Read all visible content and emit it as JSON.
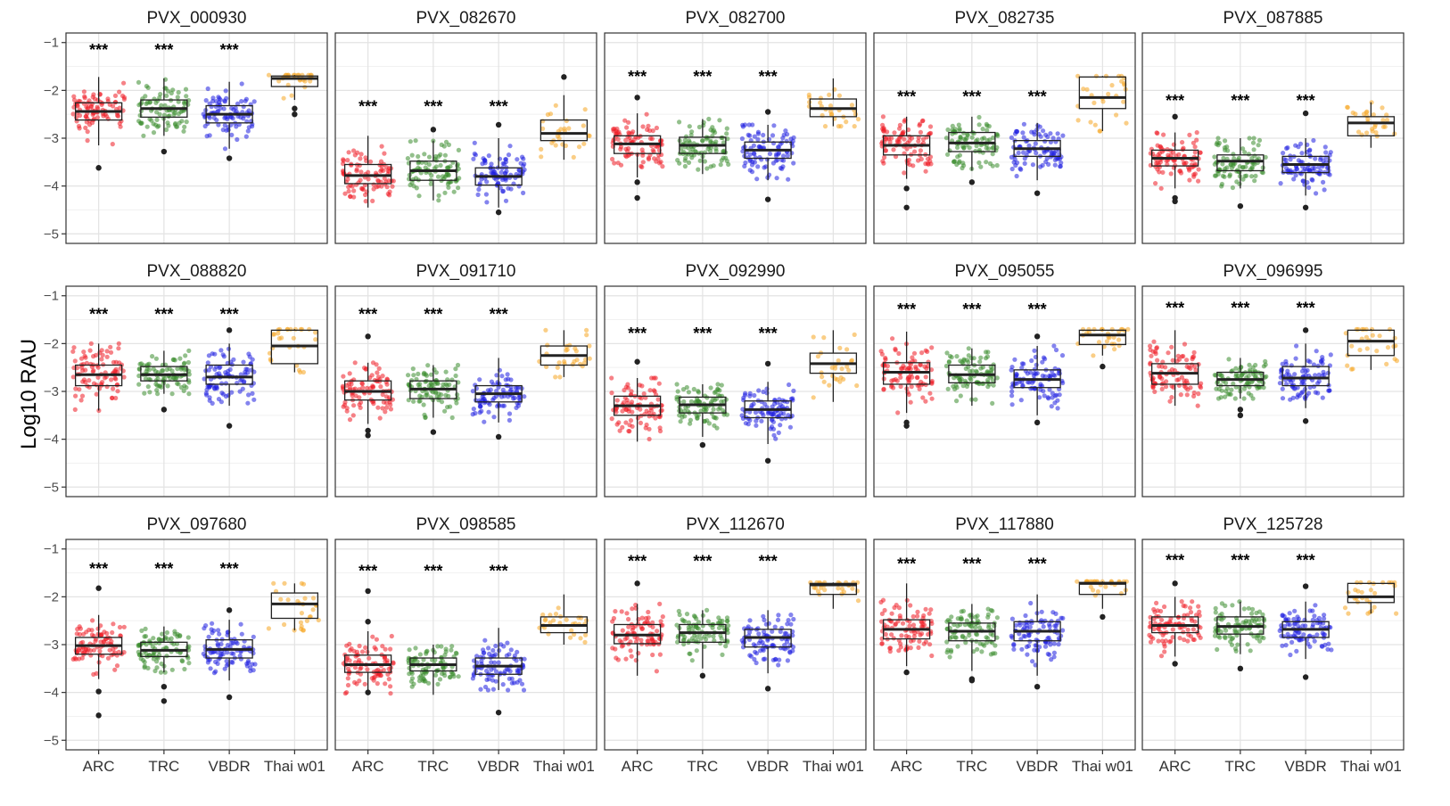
{
  "chart_data": {
    "type": "boxplot",
    "layout": "faceted grid, 3 rows x 5 columns",
    "ylabel": "Log10  RAU",
    "xlabel": "",
    "categories": [
      "ARC",
      "TRC",
      "VBDR",
      "Thai w01"
    ],
    "yticks": [
      -1,
      -2,
      -3,
      -4,
      -5
    ],
    "ylim": [
      -5.2,
      -0.8
    ],
    "grid": true,
    "colors": {
      "ARC": "#ee1c25",
      "TRC": "#3a8c2e",
      "VBDR": "#1f1fe0",
      "Thai w01": "#f5a623"
    },
    "significance_label": "***",
    "panels": [
      {
        "title": "PVX_000930",
        "boxes": [
          {
            "category": "ARC",
            "q1": -2.62,
            "median": -2.44,
            "q3": -2.26,
            "whisker_low": -3.15,
            "whisker_high": -1.72,
            "outliers": [
              -3.62
            ]
          },
          {
            "category": "TRC",
            "q1": -2.56,
            "median": -2.38,
            "q3": -2.2,
            "whisker_low": -2.95,
            "whisker_high": -1.75,
            "outliers": [
              -3.28
            ]
          },
          {
            "category": "VBDR",
            "q1": -2.68,
            "median": -2.5,
            "q3": -2.32,
            "whisker_low": -3.22,
            "whisker_high": -1.82,
            "outliers": [
              -3.42
            ]
          },
          {
            "category": "Thai w01",
            "q1": -1.92,
            "median": -1.75,
            "q3": -1.7,
            "whisker_low": -2.2,
            "whisker_high": -1.68,
            "outliers": [
              -2.38,
              -2.5
            ]
          }
        ],
        "significance": [
          "***",
          "***",
          "***",
          ""
        ],
        "sig_y": -1.12
      },
      {
        "title": "PVX_082670",
        "boxes": [
          {
            "category": "ARC",
            "q1": -3.95,
            "median": -3.78,
            "q3": -3.55,
            "whisker_low": -4.45,
            "whisker_high": -2.95,
            "outliers": []
          },
          {
            "category": "TRC",
            "q1": -3.88,
            "median": -3.68,
            "q3": -3.48,
            "whisker_low": -4.3,
            "whisker_high": -3.05,
            "outliers": [
              -2.82
            ]
          },
          {
            "category": "VBDR",
            "q1": -3.98,
            "median": -3.8,
            "q3": -3.62,
            "whisker_low": -4.45,
            "whisker_high": -3.0,
            "outliers": [
              -2.72,
              -4.55
            ]
          },
          {
            "category": "Thai w01",
            "q1": -3.05,
            "median": -2.9,
            "q3": -2.62,
            "whisker_low": -3.45,
            "whisker_high": -2.1,
            "outliers": [
              -1.72
            ]
          }
        ],
        "significance": [
          "***",
          "***",
          "***",
          ""
        ],
        "sig_y": -2.3
      },
      {
        "title": "PVX_082700",
        "boxes": [
          {
            "category": "ARC",
            "q1": -3.32,
            "median": -3.12,
            "q3": -2.95,
            "whisker_low": -3.82,
            "whisker_high": -2.48,
            "outliers": [
              -2.15,
              -3.92,
              -4.25
            ]
          },
          {
            "category": "TRC",
            "q1": -3.32,
            "median": -3.15,
            "q3": -2.98,
            "whisker_low": -3.75,
            "whisker_high": -2.6,
            "outliers": []
          },
          {
            "category": "VBDR",
            "q1": -3.42,
            "median": -3.25,
            "q3": -3.08,
            "whisker_low": -3.88,
            "whisker_high": -2.72,
            "outliers": [
              -2.45,
              -4.28
            ]
          },
          {
            "category": "Thai w01",
            "q1": -2.55,
            "median": -2.38,
            "q3": -2.18,
            "whisker_low": -2.75,
            "whisker_high": -1.75,
            "outliers": []
          }
        ],
        "significance": [
          "***",
          "***",
          "***",
          ""
        ],
        "sig_y": -1.68
      },
      {
        "title": "PVX_082735",
        "boxes": [
          {
            "category": "ARC",
            "q1": -3.35,
            "median": -3.15,
            "q3": -2.95,
            "whisker_low": -3.85,
            "whisker_high": -2.55,
            "outliers": [
              -4.05,
              -4.45
            ]
          },
          {
            "category": "TRC",
            "q1": -3.28,
            "median": -3.1,
            "q3": -2.88,
            "whisker_low": -3.68,
            "whisker_high": -2.55,
            "outliers": [
              -3.92
            ]
          },
          {
            "category": "VBDR",
            "q1": -3.38,
            "median": -3.22,
            "q3": -3.05,
            "whisker_low": -3.88,
            "whisker_high": -2.68,
            "outliers": [
              -4.15
            ]
          },
          {
            "category": "Thai w01",
            "q1": -2.38,
            "median": -2.15,
            "q3": -1.72,
            "whisker_low": -2.85,
            "whisker_high": -1.7,
            "outliers": []
          }
        ],
        "significance": [
          "***",
          "***",
          "***",
          ""
        ],
        "sig_y": -2.1
      },
      {
        "title": "PVX_087885",
        "boxes": [
          {
            "category": "ARC",
            "q1": -3.58,
            "median": -3.42,
            "q3": -3.25,
            "whisker_low": -4.05,
            "whisker_high": -2.88,
            "outliers": [
              -2.55,
              -4.25,
              -4.32
            ]
          },
          {
            "category": "TRC",
            "q1": -3.68,
            "median": -3.48,
            "q3": -3.35,
            "whisker_low": -4.05,
            "whisker_high": -3.0,
            "outliers": [
              -4.42
            ]
          },
          {
            "category": "VBDR",
            "q1": -3.72,
            "median": -3.55,
            "q3": -3.38,
            "whisker_low": -4.2,
            "whisker_high": -3.0,
            "outliers": [
              -2.48,
              -4.45
            ]
          },
          {
            "category": "Thai w01",
            "q1": -2.95,
            "median": -2.68,
            "q3": -2.55,
            "whisker_low": -3.2,
            "whisker_high": -2.25,
            "outliers": []
          }
        ],
        "significance": [
          "***",
          "***",
          "***",
          ""
        ],
        "sig_y": -2.18
      },
      {
        "title": "PVX_088820",
        "boxes": [
          {
            "category": "ARC",
            "q1": -2.88,
            "median": -2.65,
            "q3": -2.45,
            "whisker_low": -3.4,
            "whisker_high": -2.0,
            "outliers": []
          },
          {
            "category": "TRC",
            "q1": -2.78,
            "median": -2.65,
            "q3": -2.48,
            "whisker_low": -3.05,
            "whisker_high": -2.15,
            "outliers": [
              -3.38
            ]
          },
          {
            "category": "VBDR",
            "q1": -2.85,
            "median": -2.7,
            "q3": -2.45,
            "whisker_low": -3.3,
            "whisker_high": -2.0,
            "outliers": [
              -1.72,
              -3.72
            ]
          },
          {
            "category": "Thai w01",
            "q1": -2.42,
            "median": -2.05,
            "q3": -1.72,
            "whisker_low": -2.6,
            "whisker_high": -1.7,
            "outliers": []
          }
        ],
        "significance": [
          "***",
          "***",
          "***",
          ""
        ],
        "sig_y": -1.35
      },
      {
        "title": "PVX_091710",
        "boxes": [
          {
            "category": "ARC",
            "q1": -3.18,
            "median": -3.0,
            "q3": -2.78,
            "whisker_low": -3.68,
            "whisker_high": -2.4,
            "outliers": [
              -1.85,
              -3.82,
              -3.92
            ]
          },
          {
            "category": "TRC",
            "q1": -3.15,
            "median": -2.95,
            "q3": -2.78,
            "whisker_low": -3.55,
            "whisker_high": -2.45,
            "outliers": [
              -3.85
            ]
          },
          {
            "category": "VBDR",
            "q1": -3.22,
            "median": -3.05,
            "q3": -2.88,
            "whisker_low": -3.65,
            "whisker_high": -2.3,
            "outliers": [
              -3.95
            ]
          },
          {
            "category": "Thai w01",
            "q1": -2.45,
            "median": -2.25,
            "q3": -2.05,
            "whisker_low": -2.7,
            "whisker_high": -1.72,
            "outliers": []
          }
        ],
        "significance": [
          "***",
          "***",
          "***",
          ""
        ],
        "sig_y": -1.35
      },
      {
        "title": "PVX_092990",
        "boxes": [
          {
            "category": "ARC",
            "q1": -3.5,
            "median": -3.3,
            "q3": -3.1,
            "whisker_low": -4.05,
            "whisker_high": -2.72,
            "outliers": [
              -2.38
            ]
          },
          {
            "category": "TRC",
            "q1": -3.45,
            "median": -3.28,
            "q3": -3.12,
            "whisker_low": -3.95,
            "whisker_high": -2.85,
            "outliers": [
              -4.12
            ]
          },
          {
            "category": "VBDR",
            "q1": -3.55,
            "median": -3.38,
            "q3": -3.2,
            "whisker_low": -4.1,
            "whisker_high": -2.8,
            "outliers": [
              -2.42,
              -4.45
            ]
          },
          {
            "category": "Thai w01",
            "q1": -2.62,
            "median": -2.42,
            "q3": -2.2,
            "whisker_low": -3.22,
            "whisker_high": -1.72,
            "outliers": []
          }
        ],
        "significance": [
          "***",
          "***",
          "***",
          ""
        ],
        "sig_y": -1.75
      },
      {
        "title": "PVX_095055",
        "boxes": [
          {
            "category": "ARC",
            "q1": -2.85,
            "median": -2.6,
            "q3": -2.4,
            "whisker_low": -3.45,
            "whisker_high": -1.75,
            "outliers": [
              -3.65,
              -3.72
            ]
          },
          {
            "category": "TRC",
            "q1": -2.82,
            "median": -2.65,
            "q3": -2.45,
            "whisker_low": -3.3,
            "whisker_high": -2.1,
            "outliers": []
          },
          {
            "category": "VBDR",
            "q1": -2.92,
            "median": -2.75,
            "q3": -2.55,
            "whisker_low": -3.5,
            "whisker_high": -2.05,
            "outliers": [
              -1.85,
              -3.65
            ]
          },
          {
            "category": "Thai w01",
            "q1": -2.02,
            "median": -1.82,
            "q3": -1.72,
            "whisker_low": -2.25,
            "whisker_high": -1.7,
            "outliers": [
              -2.48
            ]
          }
        ],
        "significance": [
          "***",
          "***",
          "***",
          ""
        ],
        "sig_y": -1.25
      },
      {
        "title": "PVX_096995",
        "boxes": [
          {
            "category": "ARC",
            "q1": -2.85,
            "median": -2.62,
            "q3": -2.42,
            "whisker_low": -3.3,
            "whisker_high": -1.72,
            "outliers": []
          },
          {
            "category": "TRC",
            "q1": -2.88,
            "median": -2.75,
            "q3": -2.6,
            "whisker_low": -3.15,
            "whisker_high": -2.3,
            "outliers": [
              -3.38,
              -3.5
            ]
          },
          {
            "category": "VBDR",
            "q1": -2.88,
            "median": -2.72,
            "q3": -2.48,
            "whisker_low": -3.35,
            "whisker_high": -2.0,
            "outliers": [
              -1.72,
              -3.62
            ]
          },
          {
            "category": "Thai w01",
            "q1": -2.25,
            "median": -1.95,
            "q3": -1.72,
            "whisker_low": -2.55,
            "whisker_high": -1.7,
            "outliers": []
          }
        ],
        "significance": [
          "***",
          "***",
          "***",
          ""
        ],
        "sig_y": -1.22
      },
      {
        "title": "PVX_097680",
        "boxes": [
          {
            "category": "ARC",
            "q1": -3.2,
            "median": -3.02,
            "q3": -2.85,
            "whisker_low": -3.72,
            "whisker_high": -2.38,
            "outliers": [
              -1.82,
              -3.98,
              -4.48
            ]
          },
          {
            "category": "TRC",
            "q1": -3.25,
            "median": -3.12,
            "q3": -2.95,
            "whisker_low": -3.58,
            "whisker_high": -2.62,
            "outliers": [
              -3.88,
              -4.18
            ]
          },
          {
            "category": "VBDR",
            "q1": -3.28,
            "median": -3.1,
            "q3": -2.9,
            "whisker_low": -3.75,
            "whisker_high": -2.48,
            "outliers": [
              -2.28,
              -4.1
            ]
          },
          {
            "category": "Thai w01",
            "q1": -2.45,
            "median": -2.15,
            "q3": -1.92,
            "whisker_low": -2.7,
            "whisker_high": -1.72,
            "outliers": []
          }
        ],
        "significance": [
          "***",
          "***",
          "***",
          ""
        ],
        "sig_y": -1.38
      },
      {
        "title": "PVX_098585",
        "boxes": [
          {
            "category": "ARC",
            "q1": -3.58,
            "median": -3.42,
            "q3": -3.22,
            "whisker_low": -4.02,
            "whisker_high": -2.72,
            "outliers": [
              -1.88,
              -2.52,
              -4.0
            ]
          },
          {
            "category": "TRC",
            "q1": -3.55,
            "median": -3.42,
            "q3": -3.28,
            "whisker_low": -4.05,
            "whisker_high": -3.0,
            "outliers": []
          },
          {
            "category": "VBDR",
            "q1": -3.62,
            "median": -3.45,
            "q3": -3.28,
            "whisker_low": -3.95,
            "whisker_high": -2.65,
            "outliers": [
              -4.42
            ]
          },
          {
            "category": "Thai w01",
            "q1": -2.75,
            "median": -2.6,
            "q3": -2.42,
            "whisker_low": -3.0,
            "whisker_high": -1.95,
            "outliers": []
          }
        ],
        "significance": [
          "***",
          "***",
          "***",
          ""
        ],
        "sig_y": -1.42
      },
      {
        "title": "PVX_112670",
        "boxes": [
          {
            "category": "ARC",
            "q1": -2.98,
            "median": -2.8,
            "q3": -2.58,
            "whisker_low": -3.65,
            "whisker_high": -2.15,
            "outliers": [
              -1.72
            ]
          },
          {
            "category": "TRC",
            "q1": -2.95,
            "median": -2.75,
            "q3": -2.58,
            "whisker_low": -3.5,
            "whisker_high": -2.28,
            "outliers": [
              -3.65
            ]
          },
          {
            "category": "VBDR",
            "q1": -3.05,
            "median": -2.85,
            "q3": -2.68,
            "whisker_low": -3.6,
            "whisker_high": -2.28,
            "outliers": [
              -3.92
            ]
          },
          {
            "category": "Thai w01",
            "q1": -1.95,
            "median": -1.75,
            "q3": -1.72,
            "whisker_low": -2.25,
            "whisker_high": -1.7,
            "outliers": []
          }
        ],
        "significance": [
          "***",
          "***",
          "***",
          ""
        ],
        "sig_y": -1.22
      },
      {
        "title": "PVX_117880",
        "boxes": [
          {
            "category": "ARC",
            "q1": -2.88,
            "median": -2.68,
            "q3": -2.48,
            "whisker_low": -3.45,
            "whisker_high": -1.72,
            "outliers": [
              -3.58
            ]
          },
          {
            "category": "TRC",
            "q1": -2.92,
            "median": -2.72,
            "q3": -2.55,
            "whisker_low": -3.55,
            "whisker_high": -2.15,
            "outliers": [
              -3.72,
              -3.75
            ]
          },
          {
            "category": "VBDR",
            "q1": -2.92,
            "median": -2.72,
            "q3": -2.52,
            "whisker_low": -3.65,
            "whisker_high": -1.95,
            "outliers": [
              -3.88
            ]
          },
          {
            "category": "Thai w01",
            "q1": -1.95,
            "median": -1.72,
            "q3": -1.7,
            "whisker_low": -2.25,
            "whisker_high": -1.68,
            "outliers": [
              -2.42
            ]
          }
        ],
        "significance": [
          "***",
          "***",
          "***",
          ""
        ],
        "sig_y": -1.28
      },
      {
        "title": "PVX_125728",
        "boxes": [
          {
            "category": "ARC",
            "q1": -2.75,
            "median": -2.6,
            "q3": -2.42,
            "whisker_low": -3.25,
            "whisker_high": -2.0,
            "outliers": [
              -1.72,
              -3.4
            ]
          },
          {
            "category": "TRC",
            "q1": -2.78,
            "median": -2.62,
            "q3": -2.42,
            "whisker_low": -3.2,
            "whisker_high": -2.1,
            "outliers": [
              -3.5
            ]
          },
          {
            "category": "VBDR",
            "q1": -2.85,
            "median": -2.68,
            "q3": -2.52,
            "whisker_low": -3.3,
            "whisker_high": -2.1,
            "outliers": [
              -1.78,
              -3.68
            ]
          },
          {
            "category": "Thai w01",
            "q1": -2.12,
            "median": -2.0,
            "q3": -1.72,
            "whisker_low": -2.35,
            "whisker_high": -1.7,
            "outliers": []
          }
        ],
        "significance": [
          "***",
          "***",
          "***",
          ""
        ],
        "sig_y": -1.2
      }
    ]
  }
}
